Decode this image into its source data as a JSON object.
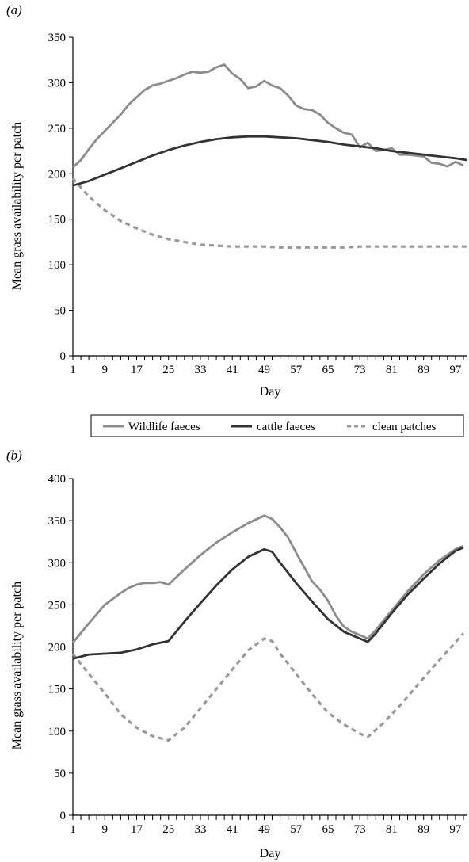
{
  "chart_data": [
    {
      "type": "line",
      "panel_label": "(a)",
      "xlabel": "Day",
      "ylabel": "Mean grass availability per patch",
      "xlim": [
        1,
        100
      ],
      "ylim": [
        0,
        350
      ],
      "yticks": [
        0,
        50,
        100,
        150,
        200,
        250,
        300,
        350
      ],
      "xticks": [
        1,
        9,
        17,
        25,
        33,
        41,
        49,
        57,
        65,
        73,
        81,
        89,
        97
      ],
      "series": [
        {
          "name": "Wildlife faeces",
          "color": "#8c8c8c",
          "style": "solid",
          "points": [
            [
              1,
              207
            ],
            [
              3,
              215
            ],
            [
              5,
              227
            ],
            [
              7,
              238
            ],
            [
              9,
              247
            ],
            [
              11,
              256
            ],
            [
              13,
              265
            ],
            [
              15,
              276
            ],
            [
              17,
              284
            ],
            [
              19,
              292
            ],
            [
              21,
              297
            ],
            [
              23,
              299
            ],
            [
              25,
              302
            ],
            [
              27,
              305
            ],
            [
              29,
              309
            ],
            [
              31,
              312
            ],
            [
              33,
              311
            ],
            [
              35,
              312
            ],
            [
              37,
              317
            ],
            [
              39,
              320
            ],
            [
              41,
              310
            ],
            [
              43,
              304
            ],
            [
              45,
              294
            ],
            [
              47,
              296
            ],
            [
              49,
              302
            ],
            [
              51,
              297
            ],
            [
              53,
              294
            ],
            [
              55,
              286
            ],
            [
              57,
              275
            ],
            [
              59,
              271
            ],
            [
              61,
              270
            ],
            [
              63,
              265
            ],
            [
              65,
              256
            ],
            [
              67,
              250
            ],
            [
              69,
              245
            ],
            [
              71,
              243
            ],
            [
              73,
              229
            ],
            [
              75,
              234
            ],
            [
              77,
              225
            ],
            [
              79,
              226
            ],
            [
              81,
              228
            ],
            [
              83,
              221
            ],
            [
              85,
              221
            ],
            [
              87,
              220
            ],
            [
              89,
              219
            ],
            [
              91,
              212
            ],
            [
              93,
              211
            ],
            [
              95,
              208
            ],
            [
              97,
              213
            ],
            [
              99,
              209
            ]
          ]
        },
        {
          "name": "cattle faeces",
          "color": "#333333",
          "style": "solid",
          "points": [
            [
              1,
              187
            ],
            [
              5,
              192
            ],
            [
              9,
              199
            ],
            [
              13,
              206
            ],
            [
              17,
              213
            ],
            [
              21,
              220
            ],
            [
              25,
              226
            ],
            [
              29,
              231
            ],
            [
              33,
              235
            ],
            [
              37,
              238
            ],
            [
              41,
              240
            ],
            [
              45,
              241
            ],
            [
              49,
              241
            ],
            [
              53,
              240
            ],
            [
              57,
              239
            ],
            [
              61,
              237
            ],
            [
              65,
              235
            ],
            [
              69,
              232
            ],
            [
              73,
              230
            ],
            [
              77,
              228
            ],
            [
              81,
              225
            ],
            [
              85,
              223
            ],
            [
              89,
              221
            ],
            [
              93,
              219
            ],
            [
              97,
              217
            ],
            [
              100,
              215
            ]
          ]
        },
        {
          "name": "clean patches",
          "color": "#9a9a9a",
          "style": "dashed",
          "points": [
            [
              1,
              195
            ],
            [
              5,
              175
            ],
            [
              9,
              160
            ],
            [
              13,
              148
            ],
            [
              17,
              140
            ],
            [
              21,
              133
            ],
            [
              25,
              128
            ],
            [
              29,
              125
            ],
            [
              33,
              122
            ],
            [
              37,
              121
            ],
            [
              41,
              120
            ],
            [
              45,
              120
            ],
            [
              49,
              120
            ],
            [
              53,
              119
            ],
            [
              57,
              119
            ],
            [
              61,
              119
            ],
            [
              65,
              119
            ],
            [
              69,
              119
            ],
            [
              73,
              120
            ],
            [
              77,
              120
            ],
            [
              81,
              120
            ],
            [
              85,
              120
            ],
            [
              89,
              120
            ],
            [
              93,
              120
            ],
            [
              97,
              120
            ],
            [
              100,
              120
            ]
          ]
        }
      ]
    },
    {
      "type": "line",
      "panel_label": "(b)",
      "xlabel": "Day",
      "ylabel": "Mean grass availability per patch",
      "xlim": [
        1,
        100
      ],
      "ylim": [
        0,
        400
      ],
      "yticks": [
        0,
        50,
        100,
        150,
        200,
        250,
        300,
        350,
        400
      ],
      "xticks": [
        1,
        9,
        17,
        25,
        33,
        41,
        49,
        57,
        65,
        73,
        81,
        89,
        97
      ],
      "series": [
        {
          "name": "Wildlife faeces",
          "color": "#8c8c8c",
          "style": "solid",
          "points": [
            [
              1,
              205
            ],
            [
              5,
              228
            ],
            [
              9,
              250
            ],
            [
              13,
              264
            ],
            [
              15,
              270
            ],
            [
              17,
              274
            ],
            [
              19,
              276
            ],
            [
              21,
              276
            ],
            [
              23,
              277
            ],
            [
              25,
              274
            ],
            [
              29,
              292
            ],
            [
              33,
              309
            ],
            [
              37,
              324
            ],
            [
              41,
              336
            ],
            [
              45,
              347
            ],
            [
              49,
              356
            ],
            [
              51,
              352
            ],
            [
              53,
              342
            ],
            [
              55,
              330
            ],
            [
              57,
              312
            ],
            [
              59,
              295
            ],
            [
              61,
              278
            ],
            [
              63,
              268
            ],
            [
              65,
              255
            ],
            [
              67,
              237
            ],
            [
              69,
              224
            ],
            [
              71,
              218
            ],
            [
              73,
              214
            ],
            [
              75,
              210
            ],
            [
              77,
              220
            ],
            [
              81,
              243
            ],
            [
              85,
              266
            ],
            [
              89,
              286
            ],
            [
              93,
              303
            ],
            [
              97,
              316
            ],
            [
              99,
              320
            ]
          ]
        },
        {
          "name": "cattle faeces",
          "color": "#333333",
          "style": "solid",
          "points": [
            [
              1,
              186
            ],
            [
              5,
              191
            ],
            [
              9,
              192
            ],
            [
              13,
              193
            ],
            [
              17,
              197
            ],
            [
              21,
              203
            ],
            [
              25,
              207
            ],
            [
              29,
              230
            ],
            [
              33,
              252
            ],
            [
              37,
              273
            ],
            [
              41,
              292
            ],
            [
              45,
              307
            ],
            [
              49,
              316
            ],
            [
              51,
              313
            ],
            [
              53,
              300
            ],
            [
              57,
              276
            ],
            [
              61,
              254
            ],
            [
              65,
              233
            ],
            [
              69,
              218
            ],
            [
              73,
              210
            ],
            [
              75,
              206
            ],
            [
              77,
              216
            ],
            [
              81,
              240
            ],
            [
              85,
              262
            ],
            [
              89,
              281
            ],
            [
              93,
              299
            ],
            [
              97,
              314
            ],
            [
              99,
              318
            ]
          ]
        },
        {
          "name": "clean patches",
          "color": "#9a9a9a",
          "style": "dashed",
          "points": [
            [
              1,
              192
            ],
            [
              5,
              168
            ],
            [
              9,
              145
            ],
            [
              13,
              120
            ],
            [
              17,
              104
            ],
            [
              21,
              94
            ],
            [
              25,
              89
            ],
            [
              29,
              104
            ],
            [
              33,
              127
            ],
            [
              37,
              150
            ],
            [
              41,
              173
            ],
            [
              45,
              196
            ],
            [
              49,
              210
            ],
            [
              51,
              207
            ],
            [
              53,
              192
            ],
            [
              57,
              168
            ],
            [
              61,
              144
            ],
            [
              65,
              122
            ],
            [
              69,
              108
            ],
            [
              73,
              97
            ],
            [
              75,
              93
            ],
            [
              79,
              110
            ],
            [
              83,
              130
            ],
            [
              87,
              152
            ],
            [
              91,
              174
            ],
            [
              95,
              195
            ],
            [
              99,
              216
            ]
          ]
        }
      ]
    }
  ],
  "legend": {
    "items": [
      {
        "label": "Wildlife faeces",
        "color": "#8c8c8c",
        "style": "solid"
      },
      {
        "label": "cattle faeces",
        "color": "#333333",
        "style": "solid"
      },
      {
        "label": "clean patches",
        "color": "#9a9a9a",
        "style": "dashed"
      }
    ]
  }
}
